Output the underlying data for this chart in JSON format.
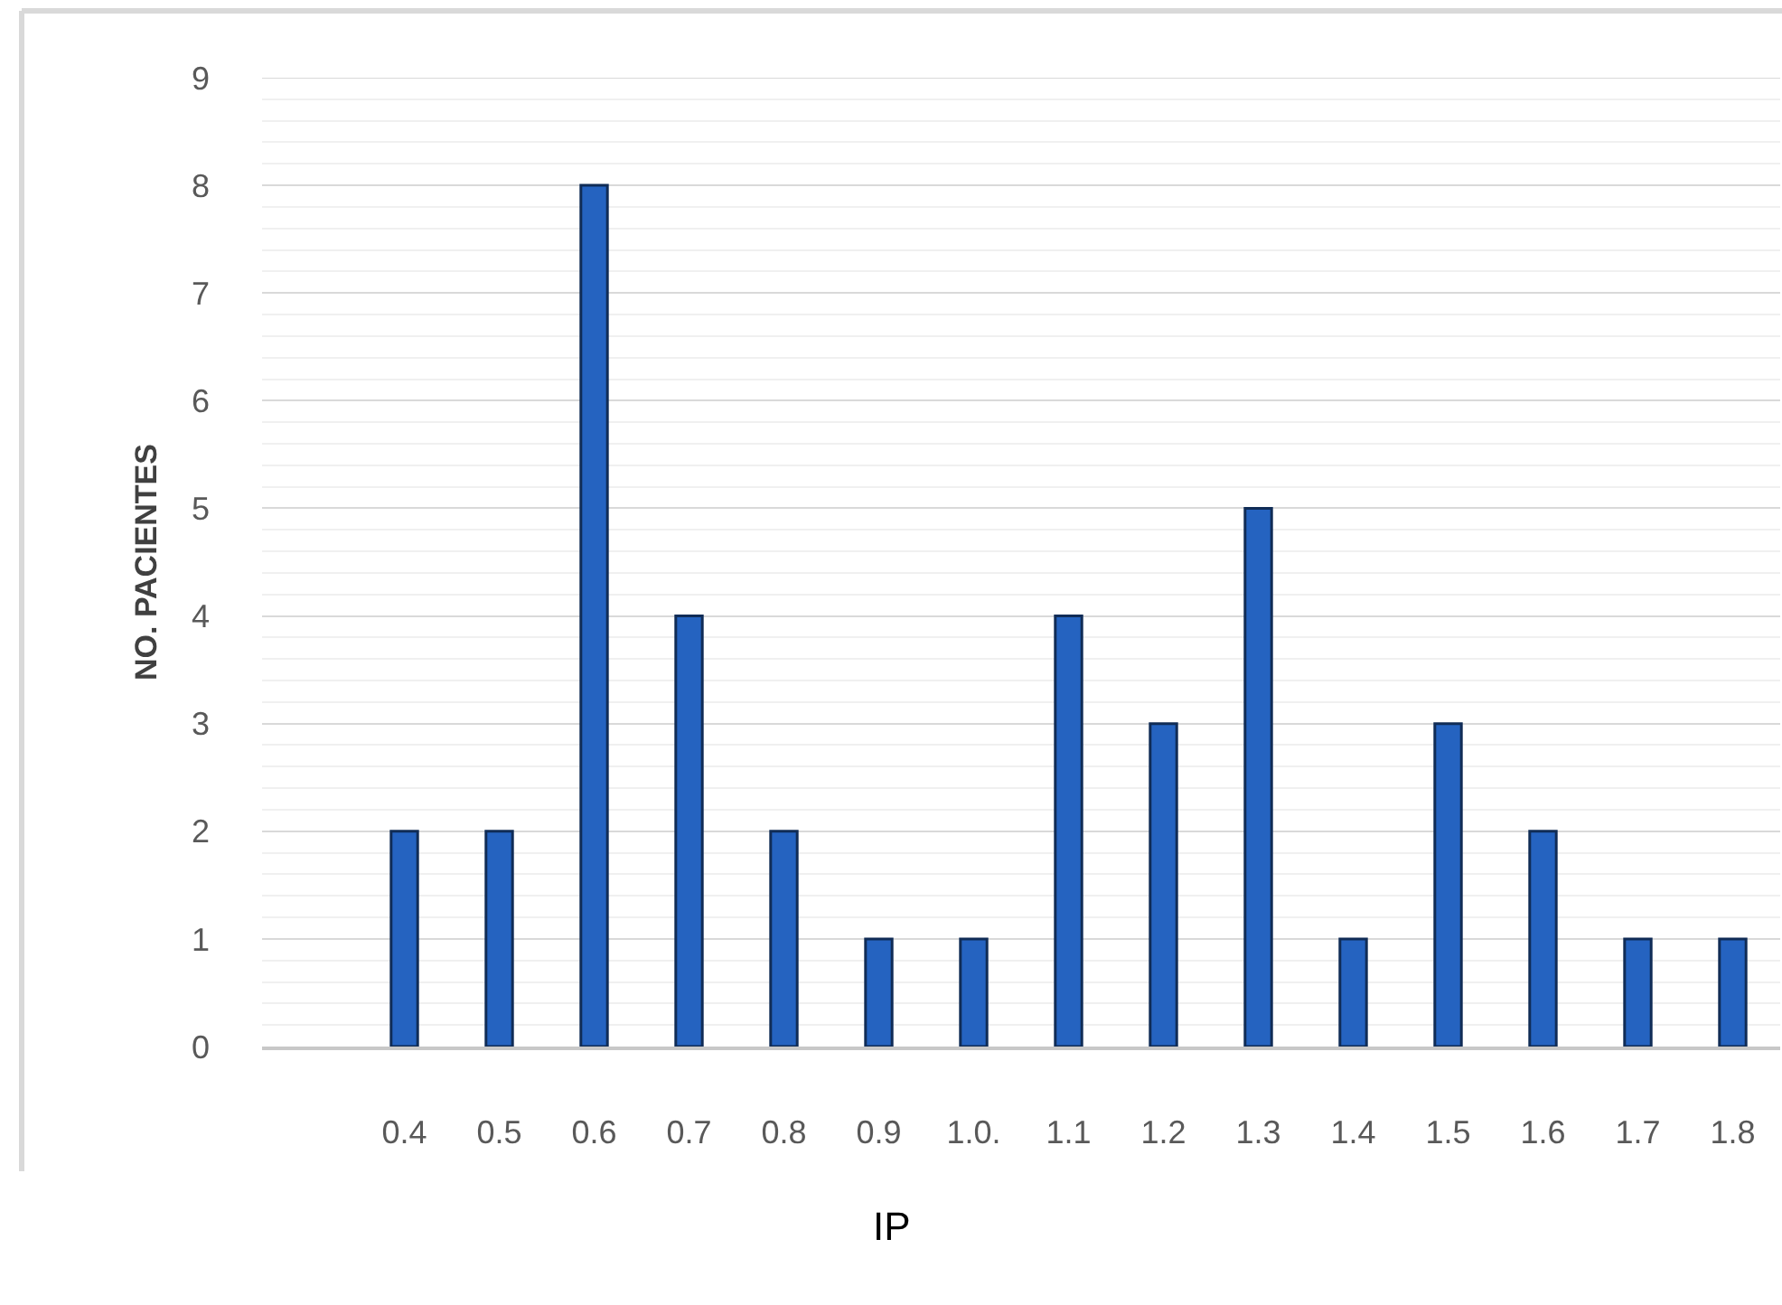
{
  "chart_data": {
    "type": "bar",
    "xlabel": "IP",
    "ylabel": "NO. PACIENTES",
    "categories": [
      null,
      "0.4",
      "0.5",
      "0.6",
      "0.7",
      "0.8",
      "0.9",
      "1.0.",
      "1.1",
      "1.2",
      "1.3",
      "1.4",
      "1.5",
      "1.6",
      "1.7",
      "1.8"
    ],
    "values": [
      null,
      2,
      2,
      8,
      4,
      2,
      1,
      1,
      4,
      3,
      5,
      1,
      3,
      2,
      1,
      1
    ],
    "color": "#2563c0",
    "ylim": [
      0,
      9
    ],
    "yticks": [
      0,
      {
        "value": 0.2,
        "label": null
      },
      {
        "value": 0.4,
        "label": null
      },
      {
        "value": 0.6,
        "label": null
      },
      {
        "value": 0.8,
        "label": null
      },
      1,
      {
        "value": 1.2,
        "label": null
      },
      {
        "value": 1.4,
        "label": null
      },
      {
        "value": 1.6,
        "label": null
      },
      {
        "value": 1.8,
        "label": null
      },
      2,
      {
        "value": 2.2,
        "label": null
      },
      {
        "value": 2.4,
        "label": null
      },
      {
        "value": 2.6,
        "label": null
      },
      {
        "value": 2.8,
        "label": null
      },
      3,
      {
        "value": 3.2,
        "label": null
      },
      {
        "value": 3.4,
        "label": null
      },
      {
        "value": 3.6,
        "label": null
      },
      {
        "value": 3.8,
        "label": null
      },
      4,
      {
        "value": 4.2,
        "label": null
      },
      {
        "value": 4.4,
        "label": null
      },
      {
        "value": 4.6,
        "label": null
      },
      {
        "value": 4.8,
        "label": null
      },
      5,
      {
        "value": 5.2,
        "label": null
      },
      {
        "value": 5.4,
        "label": null
      },
      {
        "value": 5.6,
        "label": null
      },
      {
        "value": 5.8,
        "label": null
      },
      6,
      {
        "value": 6.2,
        "label": null
      },
      {
        "value": 6.4,
        "label": null
      },
      {
        "value": 6.6,
        "label": null
      },
      {
        "value": 6.8,
        "label": null
      },
      7,
      {
        "value": 7.2,
        "label": null
      },
      {
        "value": 7.4,
        "label": null
      },
      {
        "value": 7.6,
        "label": null
      },
      {
        "value": 7.8,
        "label": null
      },
      8,
      {
        "value": 8.2,
        "label": null
      },
      {
        "value": 8.4,
        "label": null
      },
      {
        "value": 8.6,
        "label": null
      },
      {
        "value": 8.8,
        "label": null
      },
      9
    ],
    "grid": "y"
  }
}
